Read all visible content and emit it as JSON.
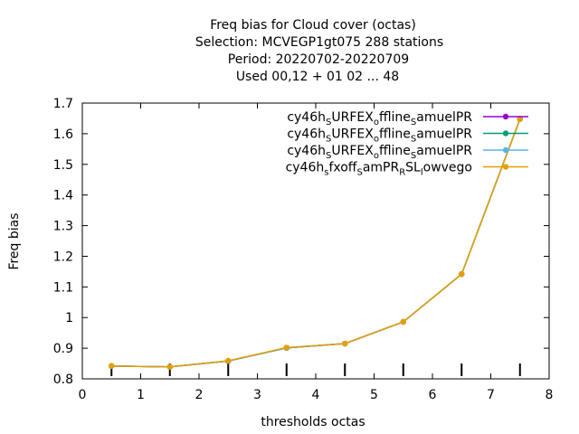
{
  "chart_data": {
    "type": "line",
    "title_lines": [
      "Freq bias  for Cloud cover (octas)",
      "Selection: MCVEGP1gt075     288 stations",
      "Period: 20220702-20220709",
      "Used  00,12  + 01 02 ... 48"
    ],
    "xlabel": "thresholds octas",
    "ylabel": "Freq bias",
    "xlim": [
      0,
      8
    ],
    "ylim": [
      0.8,
      1.7
    ],
    "xticks": [
      0,
      1,
      2,
      3,
      4,
      5,
      6,
      7,
      8
    ],
    "yticks": [
      0.8,
      0.9,
      1,
      1.1,
      1.2,
      1.3,
      1.4,
      1.5,
      1.6,
      1.7
    ],
    "x": [
      0.5,
      1.5,
      2.5,
      3.5,
      4.5,
      5.5,
      6.5,
      7.5
    ],
    "legend_position": "top-right",
    "series": [
      {
        "name": "cy46h_SURFEX_offline_SamuelPR",
        "legend_parts": [
          [
            "cy46h",
            ""
          ],
          [
            "S",
            "sub"
          ],
          [
            "URFEX",
            ""
          ],
          [
            "o",
            "sub"
          ],
          [
            "ffline",
            ""
          ],
          [
            "S",
            "sub"
          ],
          [
            "amuelPR",
            ""
          ]
        ],
        "color": "#9400d3",
        "marker": "circle",
        "values": [
          0.842,
          0.839,
          0.858,
          0.901,
          0.915,
          0.986,
          1.142,
          1.648
        ]
      },
      {
        "name": "cy46h_SURFEX_offline_SamuelPR",
        "legend_parts": [
          [
            "cy46h",
            ""
          ],
          [
            "S",
            "sub"
          ],
          [
            "URFEX",
            ""
          ],
          [
            "o",
            "sub"
          ],
          [
            "ffline",
            ""
          ],
          [
            "S",
            "sub"
          ],
          [
            "amuelPR",
            ""
          ]
        ],
        "color": "#009e73",
        "marker": "circle",
        "values": [
          0.842,
          0.839,
          0.858,
          0.901,
          0.915,
          0.986,
          1.142,
          1.648
        ]
      },
      {
        "name": "cy46h_SURFEX_offline_SamuelPR",
        "legend_parts": [
          [
            "cy46h",
            ""
          ],
          [
            "S",
            "sub"
          ],
          [
            "URFEX",
            ""
          ],
          [
            "o",
            "sub"
          ],
          [
            "ffline",
            ""
          ],
          [
            "S",
            "sub"
          ],
          [
            "amuelPR",
            ""
          ]
        ],
        "color": "#56b4e9",
        "marker": "circle",
        "values": [
          0.842,
          0.839,
          0.858,
          0.901,
          0.915,
          0.986,
          1.142,
          1.648
        ]
      },
      {
        "name": "cy46h_sfxoff_SamPR_RSL_lowvego",
        "legend_parts": [
          [
            "cy46h",
            ""
          ],
          [
            "s",
            "sub"
          ],
          [
            "fxoff",
            ""
          ],
          [
            "S",
            "sub"
          ],
          [
            "amPR",
            ""
          ],
          [
            "R",
            "sub"
          ],
          [
            "SL",
            ""
          ],
          [
            "l",
            "sub"
          ],
          [
            "owvego",
            ""
          ]
        ],
        "color": "#e69f00",
        "marker": "circle",
        "values": [
          0.842,
          0.839,
          0.859,
          0.902,
          0.915,
          0.986,
          1.142,
          1.648
        ]
      }
    ],
    "bottom_marks_x": [
      0.5,
      1.5,
      2.5,
      3.5,
      4.5,
      5.5,
      6.5,
      7.5
    ]
  }
}
